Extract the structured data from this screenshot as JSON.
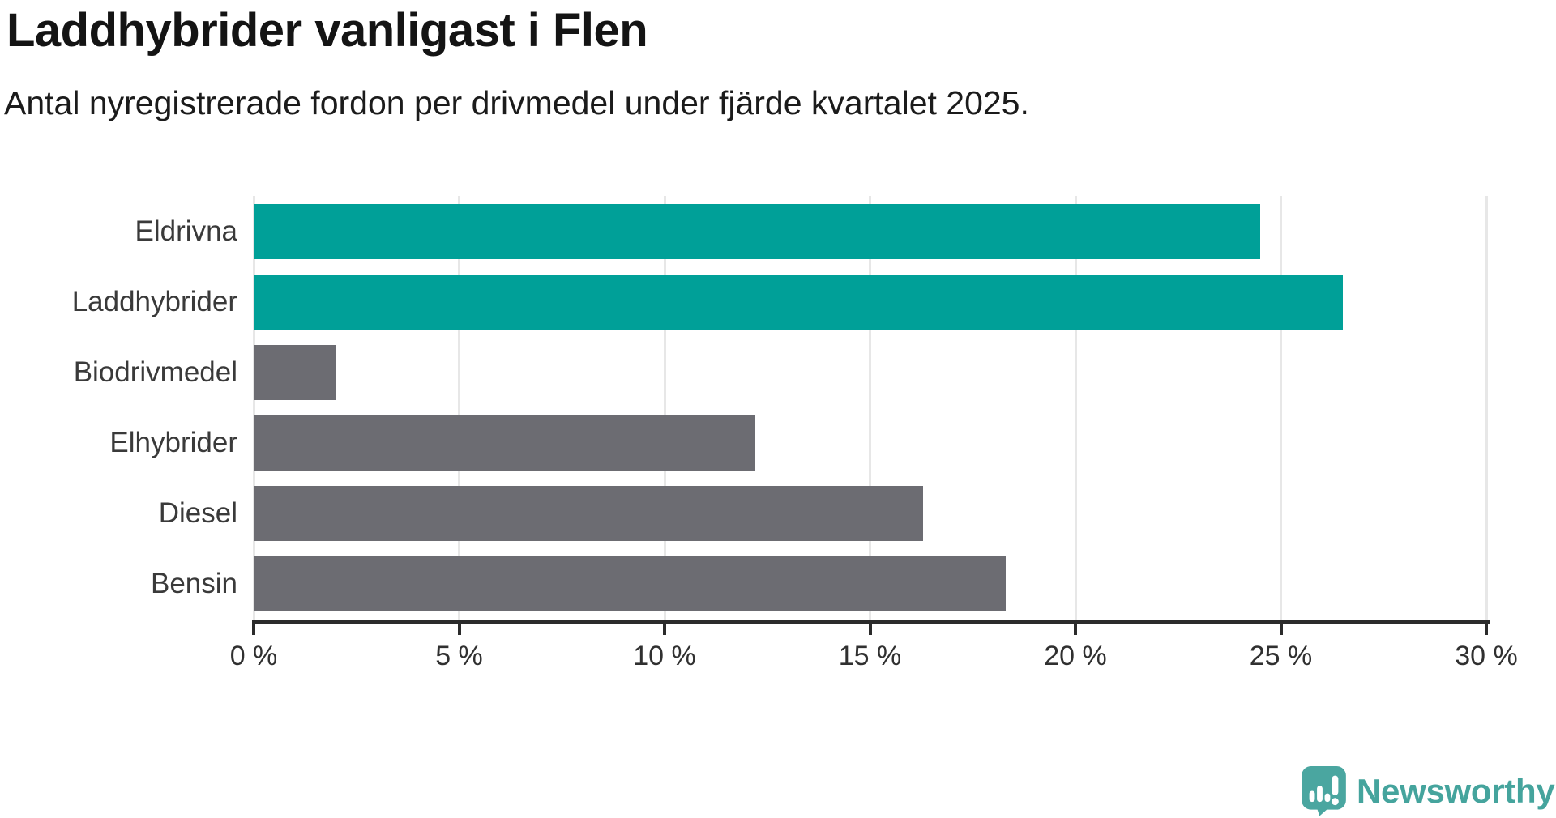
{
  "header": {
    "title": "Laddhybrider vanligast i Flen",
    "subtitle": "Antal nyregistrerade fordon per drivmedel under fjärde kvartalet 2025."
  },
  "chart_data": {
    "type": "bar",
    "orientation": "horizontal",
    "title": "Laddhybrider vanligast i Flen",
    "subtitle": "Antal nyregistrerade fordon per drivmedel under fjärde kvartalet 2025.",
    "categories": [
      "Eldrivna",
      "Laddhybrider",
      "Biodrivmedel",
      "Elhybrider",
      "Diesel",
      "Bensin"
    ],
    "values": [
      24.5,
      26.5,
      2,
      12.2,
      16.3,
      18.3
    ],
    "unit": "%",
    "xlim": [
      0,
      30
    ],
    "x_ticks": [
      0,
      5,
      10,
      15,
      20,
      25,
      30
    ],
    "x_tick_labels": [
      "0 %",
      "5 %",
      "10 %",
      "15 %",
      "20 %",
      "25 %",
      "30 %"
    ],
    "grid": "vertical-only",
    "legend": "none",
    "bar_color_roles": [
      "highlight",
      "highlight",
      "default",
      "default",
      "default",
      "default"
    ],
    "colors": {
      "highlight": "#00a098",
      "default": "#6c6c72",
      "gridline": "#e7e7e7",
      "axis": "#2b2b2b"
    }
  },
  "footer": {
    "brand": "Newsworthy",
    "brand_color": "#45a49d",
    "logo_icon": "speech-bubble-bar-chart-exclamation-icon"
  }
}
